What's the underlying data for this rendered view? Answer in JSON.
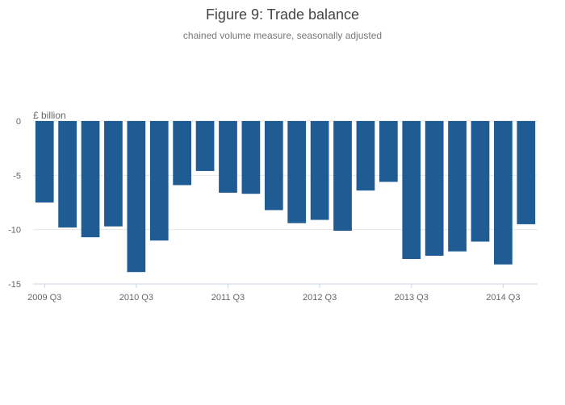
{
  "chart_data": {
    "type": "bar",
    "title": "Figure 9: Trade balance",
    "subtitle": "chained volume measure, seasonally adjusted",
    "ylabel": "£ billion",
    "xlabel": "",
    "ylim": [
      -15,
      0
    ],
    "y_ticks": [
      0,
      -5,
      -10,
      -15
    ],
    "x_tick_labels": [
      "2009 Q3",
      "2010 Q3",
      "2011 Q3",
      "2012 Q3",
      "2013 Q3",
      "2014 Q3"
    ],
    "grid": true,
    "legend": "none",
    "bar_color": "#1f5c94",
    "categories": [
      "2009 Q3",
      "2009 Q4",
      "2010 Q1",
      "2010 Q2",
      "2010 Q3",
      "2010 Q4",
      "2011 Q1",
      "2011 Q2",
      "2011 Q3",
      "2011 Q4",
      "2012 Q1",
      "2012 Q2",
      "2012 Q3",
      "2012 Q4",
      "2013 Q1",
      "2013 Q2",
      "2013 Q3",
      "2013 Q4",
      "2014 Q1",
      "2014 Q2",
      "2014 Q3",
      "2014 Q4"
    ],
    "values": [
      -7.5,
      -9.8,
      -10.7,
      -9.7,
      -13.9,
      -11.0,
      -5.9,
      -4.6,
      -6.6,
      -6.7,
      -8.2,
      -9.4,
      -9.1,
      -10.1,
      -6.4,
      -5.6,
      -12.7,
      -12.4,
      -12.0,
      -11.1,
      -13.2,
      -9.5
    ]
  }
}
